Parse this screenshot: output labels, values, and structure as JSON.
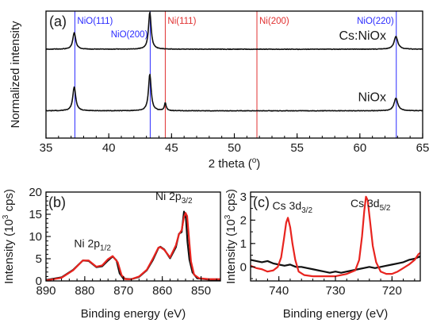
{
  "chart_data": [
    {
      "id": "a",
      "type": "line",
      "panel_label": "(a)",
      "xlabel": "2 theta (",
      "xlabel_sup": "o",
      "xlabel_tail": ")",
      "ylabel": "Normalized intensity",
      "xlim": [
        35,
        65
      ],
      "ylim": [
        0,
        1
      ],
      "xticks": [
        35,
        40,
        45,
        50,
        55,
        60,
        65
      ],
      "grid": false,
      "reference_lines": [
        {
          "label": "NiO(111)",
          "x": 37.3,
          "color": "#2a2aff",
          "label_side": "right",
          "label_row": 0
        },
        {
          "label": "NiO(200)",
          "x": 43.3,
          "color": "#2a2aff",
          "label_side": "left",
          "label_row": 1
        },
        {
          "label": "Ni(111)",
          "x": 44.5,
          "color": "#e03030",
          "label_side": "right",
          "label_row": 0
        },
        {
          "label": "Ni(200)",
          "x": 51.8,
          "color": "#e03030",
          "label_side": "right",
          "label_row": 0
        },
        {
          "label": "NiO(220)",
          "x": 62.9,
          "color": "#2a2aff",
          "label_side": "left",
          "label_row": 0
        }
      ],
      "series": [
        {
          "name": "Cs:NiOx",
          "color": "#111111",
          "baseline": 0.7,
          "peaks": [
            {
              "x": 37.25,
              "height": 0.13,
              "width": 0.22
            },
            {
              "x": 43.27,
              "height": 0.29,
              "width": 0.2
            },
            {
              "x": 62.87,
              "height": 0.1,
              "width": 0.28
            }
          ]
        },
        {
          "name": "NiOx",
          "color": "#111111",
          "baseline": 0.215,
          "peaks": [
            {
              "x": 37.25,
              "height": 0.19,
              "width": 0.22
            },
            {
              "x": 43.27,
              "height": 0.29,
              "width": 0.2
            },
            {
              "x": 44.5,
              "height": 0.06,
              "width": 0.14
            },
            {
              "x": 62.87,
              "height": 0.1,
              "width": 0.28
            }
          ]
        }
      ]
    },
    {
      "id": "b",
      "type": "line",
      "panel_label": "(b)",
      "xlabel": "Binding energy (eV)",
      "ylabel_main": "Intensity (10",
      "ylabel_sup": "3",
      "ylabel_tail": " cps)",
      "xlim": [
        890,
        845
      ],
      "ylim": [
        0,
        20
      ],
      "xticks": [
        890,
        880,
        870,
        860,
        850
      ],
      "yticks": [
        0,
        5,
        10,
        15,
        20
      ],
      "grid": false,
      "annotations": [
        {
          "base": "Ni 2p",
          "sub": "1/2",
          "x": 878,
          "y": 7.6
        },
        {
          "base": "Ni 2p",
          "sub": "3/2",
          "x": 857,
          "y": 18.2
        }
      ],
      "series": [
        {
          "name": "",
          "color": "#111111",
          "points": [
            [
              890,
              0.2
            ],
            [
              886,
              0.8
            ],
            [
              883,
              2.5
            ],
            [
              880.5,
              4.6
            ],
            [
              879,
              4.5
            ],
            [
              877,
              3.1
            ],
            [
              875.5,
              3.3
            ],
            [
              874,
              4.6
            ],
            [
              872.8,
              5.5
            ],
            [
              871.8,
              4.6
            ],
            [
              871,
              1.7
            ],
            [
              870,
              0.5
            ],
            [
              868,
              0.4
            ],
            [
              866,
              0.9
            ],
            [
              864,
              2.4
            ],
            [
              862.5,
              4.6
            ],
            [
              861,
              7.4
            ],
            [
              860.5,
              7.7
            ],
            [
              859.5,
              7.1
            ],
            [
              858,
              5.1
            ],
            [
              856.5,
              7.6
            ],
            [
              855.7,
              10.6
            ],
            [
              855,
              11.0
            ],
            [
              854.4,
              15.6
            ],
            [
              853.9,
              14.1
            ],
            [
              853.5,
              8.8
            ],
            [
              853,
              4.8
            ],
            [
              852.2,
              1.9
            ],
            [
              851,
              0.6
            ],
            [
              848,
              0.3
            ],
            [
              845,
              0.2
            ]
          ]
        },
        {
          "name": "",
          "color": "#e8241f",
          "points": [
            [
              890,
              0.1
            ],
            [
              886,
              0.7
            ],
            [
              883,
              2.4
            ],
            [
              880.5,
              4.6
            ],
            [
              879,
              4.6
            ],
            [
              877,
              3.2
            ],
            [
              875.5,
              3.5
            ],
            [
              874,
              4.9
            ],
            [
              872.8,
              5.6
            ],
            [
              871.5,
              4.2
            ],
            [
              870.5,
              1.3
            ],
            [
              869.5,
              0.4
            ],
            [
              868,
              0.4
            ],
            [
              866,
              1.0
            ],
            [
              864,
              2.5
            ],
            [
              862.5,
              4.9
            ],
            [
              861,
              7.5
            ],
            [
              860.5,
              7.6
            ],
            [
              859.5,
              7.0
            ],
            [
              858,
              5.3
            ],
            [
              856.5,
              8.0
            ],
            [
              855.7,
              10.5
            ],
            [
              855,
              11.4
            ],
            [
              854.4,
              14.4
            ],
            [
              854.0,
              15.3
            ],
            [
              853.6,
              14.6
            ],
            [
              853.2,
              10.5
            ],
            [
              852.6,
              4.4
            ],
            [
              851.8,
              1.4
            ],
            [
              850.5,
              0.6
            ],
            [
              848,
              0.4
            ],
            [
              845,
              0.4
            ]
          ]
        }
      ]
    },
    {
      "id": "c",
      "type": "line",
      "panel_label": "(c)",
      "xlabel": "Binding energy (eV)",
      "ylabel_main": "Intensity (10",
      "ylabel_sup": "3",
      "ylabel_tail": " cps)",
      "xlim": [
        745,
        715
      ],
      "ylim": [
        -0.6,
        3.2
      ],
      "xticks": [
        740,
        730,
        720
      ],
      "yticks": [
        0,
        1,
        2,
        3
      ],
      "grid": false,
      "annotations": [
        {
          "base": "Cs 3d",
          "sub": "3/2",
          "x": 737.6,
          "y": 2.45
        },
        {
          "base": "Cs 3d",
          "sub": "5/2",
          "x": 723.8,
          "y": 2.55
        }
      ],
      "series": [
        {
          "name": "",
          "color": "#111111",
          "points": [
            [
              745,
              0.3
            ],
            [
              744,
              0.25
            ],
            [
              743,
              0.2
            ],
            [
              742,
              0.25
            ],
            [
              741,
              0.15
            ],
            [
              740,
              0.1
            ],
            [
              739,
              0.05
            ],
            [
              738,
              0.1
            ],
            [
              737,
              0.0
            ],
            [
              736,
              0.0
            ],
            [
              735,
              -0.05
            ],
            [
              734,
              -0.1
            ],
            [
              733,
              -0.15
            ],
            [
              732,
              -0.2
            ],
            [
              731,
              -0.25
            ],
            [
              730,
              -0.2
            ],
            [
              729,
              -0.25
            ],
            [
              728,
              -0.2
            ],
            [
              727,
              -0.15
            ],
            [
              726,
              -0.1
            ],
            [
              725,
              -0.05
            ],
            [
              724,
              0.0
            ],
            [
              723,
              -0.05
            ],
            [
              722,
              0.0
            ],
            [
              721,
              0.05
            ],
            [
              720,
              0.1
            ],
            [
              719,
              0.15
            ],
            [
              718,
              0.2
            ],
            [
              717,
              0.3
            ],
            [
              716,
              0.35
            ],
            [
              715,
              0.45
            ]
          ]
        },
        {
          "name": "",
          "color": "#e8241f",
          "points": [
            [
              745,
              0.05
            ],
            [
              744,
              -0.05
            ],
            [
              743,
              -0.1
            ],
            [
              742,
              -0.2
            ],
            [
              741,
              -0.15
            ],
            [
              740.2,
              0.0
            ],
            [
              739.6,
              0.4
            ],
            [
              739.1,
              1.2
            ],
            [
              738.7,
              1.9
            ],
            [
              738.4,
              2.1
            ],
            [
              738.0,
              1.7
            ],
            [
              737.6,
              1.0
            ],
            [
              737.1,
              0.3
            ],
            [
              736.5,
              -0.2
            ],
            [
              735.5,
              -0.35
            ],
            [
              734,
              -0.4
            ],
            [
              732,
              -0.4
            ],
            [
              730,
              -0.4
            ],
            [
              728,
              -0.3
            ],
            [
              726.5,
              -0.15
            ],
            [
              725.8,
              0.3
            ],
            [
              725.3,
              1.3
            ],
            [
              724.9,
              2.4
            ],
            [
              724.6,
              3.0
            ],
            [
              724.3,
              2.85
            ],
            [
              723.9,
              2.0
            ],
            [
              723.4,
              0.9
            ],
            [
              722.8,
              0.2
            ],
            [
              722,
              -0.2
            ],
            [
              721,
              -0.3
            ],
            [
              720,
              -0.3
            ],
            [
              719,
              -0.2
            ],
            [
              718,
              -0.05
            ],
            [
              717,
              0.1
            ],
            [
              716,
              0.3
            ],
            [
              715.3,
              0.55
            ],
            [
              715,
              0.6
            ]
          ]
        }
      ]
    }
  ]
}
